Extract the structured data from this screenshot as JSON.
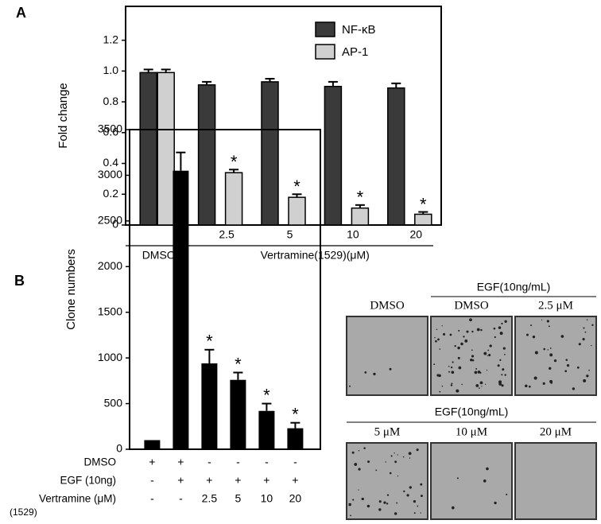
{
  "chart_data": [
    {
      "type": "grouped_bar",
      "panel": "A",
      "y_label": "Fold change",
      "categories": [
        null,
        "2.5",
        "5",
        "10",
        "20"
      ],
      "group_labels": [
        "DMSO",
        "Vertramine(1529)(μM)"
      ],
      "series": [
        {
          "name": "NF-κB",
          "color": "#3a3a3a",
          "values": [
            0.99,
            0.91,
            0.93,
            0.9,
            0.89
          ],
          "errors": [
            0.02,
            0.02,
            0.02,
            0.03,
            0.03
          ],
          "significance": [
            null,
            null,
            null,
            null,
            null
          ]
        },
        {
          "name": "AP-1",
          "color": "#d0d0d0",
          "values": [
            0.99,
            0.34,
            0.18,
            0.11,
            0.07
          ],
          "errors": [
            0.02,
            0.02,
            0.02,
            0.02,
            0.015
          ],
          "significance": [
            null,
            "*",
            "*",
            "*",
            "*"
          ]
        }
      ],
      "ylim": [
        0,
        1.42
      ],
      "yticks": [
        0,
        0.2,
        0.4,
        0.6,
        0.8,
        {
          "value": 1,
          "label": "1.0"
        },
        1.2
      ],
      "legend": "top-right"
    },
    {
      "type": "bar",
      "panel": "B",
      "y_label": "Clone numbers",
      "color": "#000000",
      "values": [
        100,
        3050,
        940,
        760,
        420,
        230
      ],
      "errors": [
        null,
        200,
        150,
        80,
        80,
        60
      ],
      "significance": [
        null,
        null,
        "*",
        "*",
        "*",
        "*"
      ],
      "ylim": [
        0,
        3500
      ],
      "yticks": [
        0,
        500,
        1000,
        1500,
        2000,
        2500,
        3000,
        3500
      ],
      "conditions": [
        {
          "label": "DMSO",
          "values": [
            "+",
            "+",
            "-",
            "-",
            "-",
            "-"
          ]
        },
        {
          "label": "EGF (10ng)",
          "values": [
            "-",
            "+",
            "+",
            "+",
            "+",
            "+"
          ]
        },
        {
          "label": "Vertramine (μM)",
          "sublabel": "(1529)",
          "values": [
            "-",
            "-",
            "2.5",
            "5",
            "10",
            "20"
          ]
        }
      ]
    }
  ],
  "image_panels": {
    "row1": {
      "labels": [
        "DMSO",
        "DMSO",
        "2.5 μM"
      ],
      "header": "EGF(10ng/mL)"
    },
    "row2": {
      "labels": [
        "5 μM",
        "10 μM",
        "20 μM"
      ],
      "header": "EGF(10ng/mL)"
    }
  }
}
